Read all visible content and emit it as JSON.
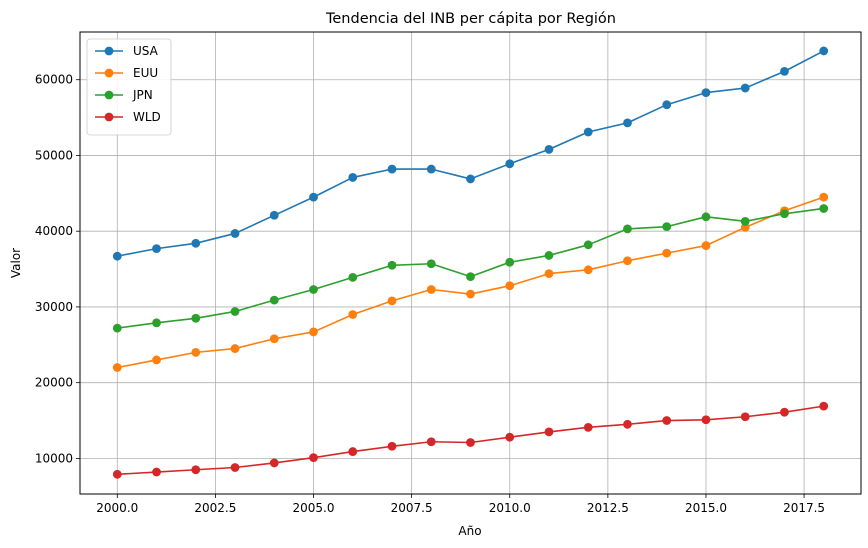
{
  "chart_data": {
    "type": "line",
    "title": "Tendencia del INB per cápita por Región",
    "xlabel": "Año",
    "ylabel": "Valor",
    "xlim": [
      1999.05,
      2018.95
    ],
    "ylim": [
      5300,
      66300
    ],
    "xticks": [
      2000.0,
      2002.5,
      2005.0,
      2007.5,
      2010.0,
      2012.5,
      2015.0,
      2017.5
    ],
    "xtick_labels": [
      "2000.0",
      "2002.5",
      "2005.0",
      "2007.5",
      "2010.0",
      "2012.5",
      "2015.0",
      "2017.5"
    ],
    "yticks": [
      10000,
      20000,
      30000,
      40000,
      50000,
      60000
    ],
    "ytick_labels": [
      "10000",
      "20000",
      "30000",
      "40000",
      "50000",
      "60000"
    ],
    "grid": true,
    "legend_position": "top-left",
    "x": [
      2000,
      2001,
      2002,
      2003,
      2004,
      2005,
      2006,
      2007,
      2008,
      2009,
      2010,
      2011,
      2012,
      2013,
      2014,
      2015,
      2016,
      2017,
      2018
    ],
    "series": [
      {
        "name": "USA",
        "color": "#1f77b4",
        "values": [
          36700,
          37700,
          38400,
          39700,
          42100,
          44500,
          47100,
          48200,
          48200,
          46900,
          48900,
          50800,
          53100,
          54300,
          56700,
          58300,
          58900,
          61100,
          63800
        ]
      },
      {
        "name": "EUU",
        "color": "#ff7f0e",
        "values": [
          22000,
          23000,
          24000,
          24500,
          25800,
          26700,
          29000,
          30800,
          32300,
          31700,
          32800,
          34400,
          34900,
          36100,
          37100,
          38100,
          40500,
          42700,
          44500
        ]
      },
      {
        "name": "JPN",
        "color": "#2ca02c",
        "values": [
          27200,
          27900,
          28500,
          29400,
          30900,
          32300,
          33900,
          35500,
          35700,
          34000,
          35900,
          36800,
          38200,
          40300,
          40600,
          41900,
          41300,
          42300,
          43000
        ]
      },
      {
        "name": "WLD",
        "color": "#d62728",
        "values": [
          7900,
          8200,
          8500,
          8800,
          9400,
          10100,
          10900,
          11600,
          12200,
          12100,
          12800,
          13500,
          14100,
          14500,
          15000,
          15100,
          15500,
          16100,
          16900
        ]
      }
    ]
  }
}
